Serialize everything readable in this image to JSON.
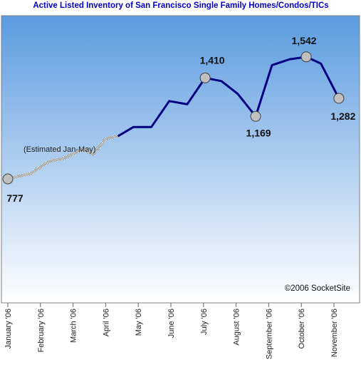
{
  "chart_data": {
    "type": "line",
    "title": "Active Listed Inventory of San Francisco Single Family Homes/Condos/TICs",
    "xlabel": "",
    "ylabel": "",
    "x_tick_labels": [
      "January '06",
      "February '06",
      "March '06",
      "April '06",
      "May '06",
      "June '06",
      "July '06",
      "August '06",
      "September '06",
      "October '06",
      "November '06"
    ],
    "ylim": [
      0,
      1800
    ],
    "grid": false,
    "legend": "none",
    "series": [
      {
        "name": "",
        "style": "estimated",
        "points": [
          {
            "x": 0.0,
            "y": 777
          },
          {
            "x": 0.3,
            "y": 792
          },
          {
            "x": 0.7,
            "y": 810
          },
          {
            "x": 1.0,
            "y": 852
          },
          {
            "x": 1.3,
            "y": 890
          },
          {
            "x": 1.7,
            "y": 903
          },
          {
            "x": 2.0,
            "y": 935
          },
          {
            "x": 2.3,
            "y": 963
          },
          {
            "x": 2.6,
            "y": 930
          },
          {
            "x": 3.0,
            "y": 1027
          },
          {
            "x": 3.4,
            "y": 1048
          }
        ]
      },
      {
        "name": "",
        "style": "actual",
        "points": [
          {
            "x": 3.4,
            "y": 1048
          },
          {
            "x": 3.85,
            "y": 1102
          },
          {
            "x": 4.4,
            "y": 1102
          },
          {
            "x": 4.95,
            "y": 1265
          },
          {
            "x": 5.5,
            "y": 1245
          },
          {
            "x": 6.05,
            "y": 1410
          },
          {
            "x": 6.55,
            "y": 1390
          },
          {
            "x": 7.05,
            "y": 1310
          },
          {
            "x": 7.6,
            "y": 1169
          },
          {
            "x": 8.1,
            "y": 1490
          },
          {
            "x": 8.65,
            "y": 1527
          },
          {
            "x": 9.15,
            "y": 1542
          },
          {
            "x": 9.6,
            "y": 1500
          },
          {
            "x": 10.15,
            "y": 1282
          }
        ]
      }
    ],
    "markers": [
      {
        "x": 0.0,
        "y": 777,
        "label": "777"
      },
      {
        "x": 6.05,
        "y": 1410,
        "label": "1,410"
      },
      {
        "x": 7.6,
        "y": 1169,
        "label": "1,169"
      },
      {
        "x": 9.15,
        "y": 1542,
        "label": "1,542"
      },
      {
        "x": 10.15,
        "y": 1282,
        "label": "1,282"
      }
    ],
    "annotations": [
      {
        "text": "(Estimated Jan-May)"
      },
      {
        "text": "©2006 SocketSite"
      }
    ],
    "colors": {
      "line": "#000080",
      "marker_fill": "#c0c0c0",
      "marker_stroke": "#404040",
      "estimated_line": "#999999",
      "background_top": "#5b9be0",
      "background_bottom": "#ffffff",
      "title": "#0000cc"
    }
  }
}
